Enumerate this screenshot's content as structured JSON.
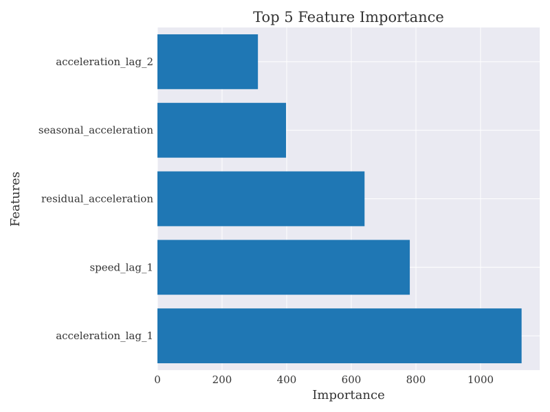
{
  "chart_data": {
    "type": "bar",
    "orientation": "horizontal",
    "title": "Top 5 Feature Importance",
    "xlabel": "Importance",
    "ylabel": "Features",
    "categories": [
      "acceleration_lag_1",
      "speed_lag_1",
      "residual_acceleration",
      "seasonal_acceleration",
      "acceleration_lag_2"
    ],
    "values": [
      1127,
      781,
      641,
      398,
      311
    ],
    "xlim": [
      0,
      1183
    ],
    "xticks": [
      0,
      200,
      400,
      600,
      800,
      1000
    ],
    "xtick_labels": [
      "0",
      "200",
      "400",
      "600",
      "800",
      "1000"
    ],
    "grid": true,
    "colors": {
      "bar": "#1f77b4",
      "plot_background": "#eaeaf2",
      "grid": "#ffffff",
      "text": "#333333"
    }
  }
}
